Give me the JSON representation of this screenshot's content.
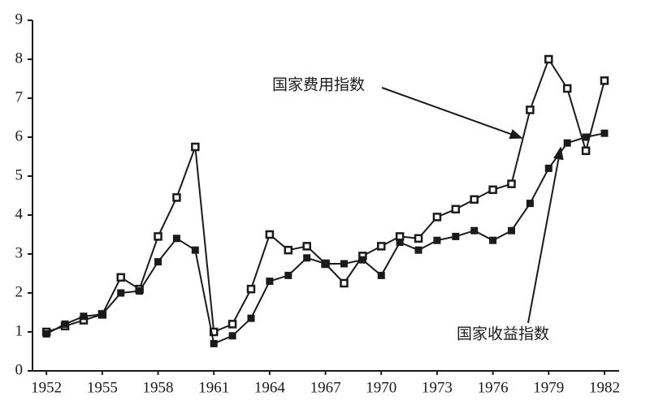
{
  "chart_data": {
    "type": "line",
    "x": [
      1952,
      1953,
      1954,
      1955,
      1956,
      1957,
      1958,
      1959,
      1960,
      1961,
      1962,
      1963,
      1964,
      1965,
      1966,
      1967,
      1968,
      1969,
      1970,
      1971,
      1972,
      1973,
      1974,
      1975,
      1976,
      1977,
      1978,
      1979,
      1980,
      1981,
      1982
    ],
    "series": [
      {
        "name": "国家费用指数",
        "color": "#1a1a1a",
        "marker": "open-square",
        "values": [
          1.0,
          1.15,
          1.3,
          1.45,
          2.4,
          2.1,
          3.45,
          4.45,
          5.75,
          1.0,
          1.2,
          2.1,
          3.5,
          3.1,
          3.2,
          2.75,
          2.25,
          2.95,
          3.2,
          3.45,
          3.4,
          3.95,
          4.15,
          4.4,
          4.65,
          4.8,
          6.7,
          8.0,
          7.25,
          5.65,
          7.45
        ]
      },
      {
        "name": "国家收益指数",
        "color": "#1a1a1a",
        "marker": "filled-square",
        "values": [
          0.95,
          1.2,
          1.4,
          1.45,
          2.0,
          2.05,
          2.8,
          3.4,
          3.1,
          0.7,
          0.9,
          1.35,
          2.3,
          2.45,
          2.9,
          2.75,
          2.75,
          2.85,
          2.45,
          3.3,
          3.1,
          3.35,
          3.45,
          3.6,
          3.35,
          3.6,
          4.3,
          5.2,
          5.85,
          6.0,
          6.1
        ]
      }
    ],
    "xlim": [
      1951.25,
      1982.7
    ],
    "xticks": [
      1952,
      1955,
      1958,
      1961,
      1964,
      1967,
      1970,
      1973,
      1976,
      1979,
      1982
    ],
    "ylim": [
      0,
      9
    ],
    "yticks": [
      0,
      1,
      2,
      3,
      4,
      5,
      6,
      7,
      8,
      9
    ],
    "grid": false
  }
}
